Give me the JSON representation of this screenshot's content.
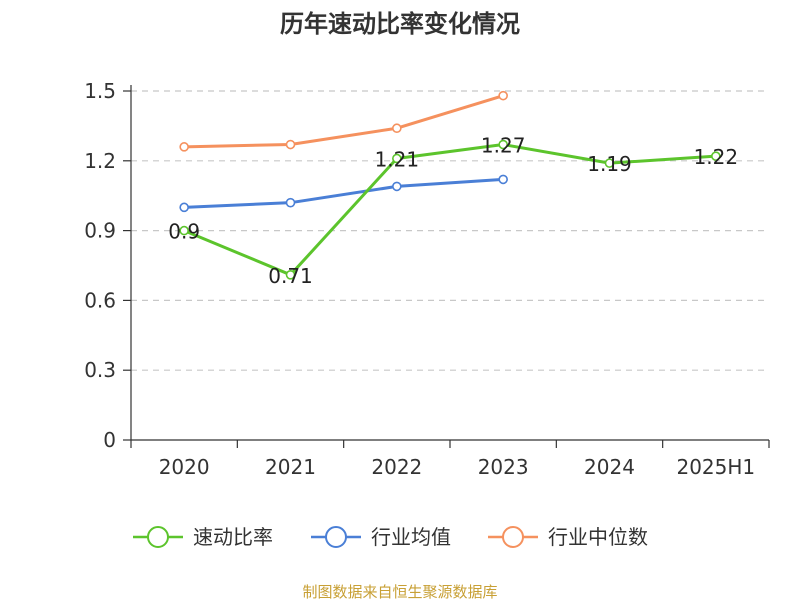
{
  "chart_data": {
    "type": "line",
    "title": "历年速动比率变化情况",
    "categories": [
      "2020",
      "2021",
      "2022",
      "2023",
      "2024",
      "2025H1"
    ],
    "ylim": [
      0,
      1.5
    ],
    "yticks": [
      "0",
      "0.3",
      "0.6",
      "0.9",
      "1.2",
      "1.5"
    ],
    "grid": true,
    "legend_position": "bottom",
    "series": [
      {
        "name": "速动比率",
        "color": "#5cc42c",
        "values": [
          0.9,
          0.71,
          1.21,
          1.27,
          1.19,
          1.22
        ],
        "labels": [
          "0.9",
          "0.71",
          "1.21",
          "1.27",
          "1.19",
          "1.22"
        ]
      },
      {
        "name": "行业均值",
        "color": "#4a7fd6",
        "values": [
          1.0,
          1.02,
          1.09,
          1.12,
          null,
          null
        ]
      },
      {
        "name": "行业中位数",
        "color": "#f5915e",
        "values": [
          1.26,
          1.27,
          1.34,
          1.48,
          null,
          null
        ]
      }
    ]
  },
  "footer": {
    "source": "制图数据来自恒生聚源数据库"
  }
}
